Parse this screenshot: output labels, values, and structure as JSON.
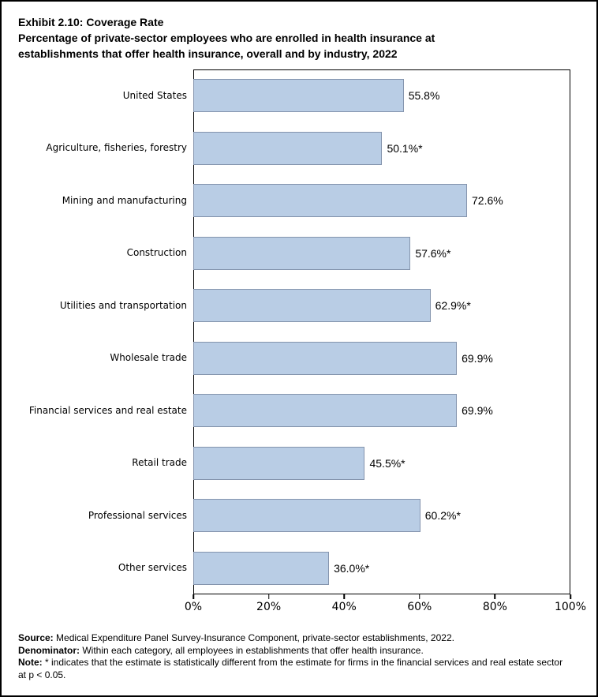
{
  "title": "Exhibit 2.10: Coverage Rate",
  "subtitle": "Percentage of private-sector employees who are enrolled in health insurance at establishments that offer health insurance, overall and by industry, 2022",
  "chart_data": {
    "type": "bar",
    "orientation": "horizontal",
    "categories": [
      "United States",
      "Agriculture, fisheries, forestry",
      "Mining and manufacturing",
      "Construction",
      "Utilities and transportation",
      "Wholesale trade",
      "Financial services and real estate",
      "Retail trade",
      "Professional services",
      "Other services"
    ],
    "values": [
      55.8,
      50.1,
      72.6,
      57.6,
      62.9,
      69.9,
      69.9,
      45.5,
      60.2,
      36.0
    ],
    "value_labels": [
      "55.8%",
      "50.1%*",
      "72.6%",
      "57.6%*",
      "62.9%*",
      "69.9%",
      "69.9%",
      "45.5%*",
      "60.2%*",
      "36.0%*"
    ],
    "xlim": [
      0,
      100
    ],
    "x_ticks": [
      "0%",
      "20%",
      "40%",
      "60%",
      "80%",
      "100%"
    ],
    "grid": "off",
    "legend": "none",
    "bar_fill_color": "#b9cde5",
    "bar_border_color": "#8494ad"
  },
  "notes": [
    {
      "label": "Source:",
      "text": "Medical Expenditure Panel Survey-Insurance Component, private-sector establishments, 2022."
    },
    {
      "label": "Denominator:",
      "text": "Within each category, all employees in establishments that offer health insurance."
    },
    {
      "label": "Note:",
      "text": "* indicates that the estimate is statistically different from the estimate for firms in the financial services and real estate sector at p < 0.05."
    }
  ]
}
